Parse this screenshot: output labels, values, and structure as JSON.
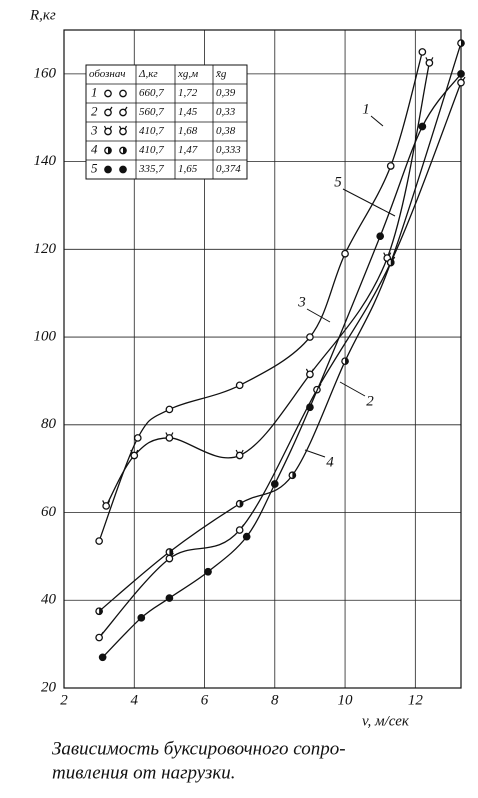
{
  "chart_data": {
    "type": "line",
    "ylabel": "R,кг",
    "xlabel": "v, м/сек",
    "caption": [
      "Зависимость буксировочного сопро-",
      "тивления от нагрузки."
    ],
    "xlim": [
      2,
      13.3
    ],
    "ylim": [
      20,
      170
    ],
    "xticks": [
      2,
      4,
      6,
      8,
      10,
      12
    ],
    "yticks": [
      20,
      40,
      60,
      80,
      100,
      120,
      140,
      160
    ],
    "grid": true,
    "series": [
      {
        "name": "1",
        "color": "#111",
        "marker": "open",
        "x": [
          3.0,
          4.1,
          5.0,
          7.0,
          9.0,
          10.0,
          11.3,
          12.2
        ],
        "values": [
          53.5,
          77,
          83.5,
          89,
          100,
          119,
          139,
          165
        ]
      },
      {
        "name": "2",
        "color": "#111",
        "marker": "open-tick",
        "x": [
          3.0,
          5.0,
          7.0,
          9.2,
          11.3,
          13.3
        ],
        "values": [
          31.5,
          49.5,
          56,
          88,
          117,
          158
        ]
      },
      {
        "name": "3",
        "color": "#111",
        "marker": "open-double-tick",
        "x": [
          3.2,
          4.0,
          5.0,
          7.0,
          9.0,
          11.2,
          12.4
        ],
        "values": [
          61.5,
          73,
          77,
          73,
          91.5,
          118,
          162.5
        ]
      },
      {
        "name": "4",
        "color": "#111",
        "marker": "half",
        "x": [
          3.0,
          5.0,
          7.0,
          8.5,
          10.0,
          11.3,
          13.3
        ],
        "values": [
          37.5,
          51,
          62,
          68.5,
          94.5,
          117,
          167
        ]
      },
      {
        "name": "5",
        "color": "#111",
        "marker": "filled",
        "x": [
          3.1,
          4.2,
          5.0,
          6.1,
          7.2,
          8.0,
          9.0,
          11.0,
          12.2,
          13.3
        ],
        "values": [
          27,
          36,
          40.5,
          46.5,
          54.5,
          66.5,
          84,
          123,
          148,
          160
        ]
      }
    ],
    "legend_table": {
      "header": [
        "обознач",
        "Δ,кг",
        "xg,м",
        "x̄g"
      ],
      "rows": [
        [
          "660,7",
          "1,72",
          "0,39"
        ],
        [
          "560,7",
          "1,45",
          "0,33"
        ],
        [
          "410,7",
          "1,68",
          "0,38"
        ],
        [
          "410,7",
          "1,47",
          "0,333"
        ],
        [
          "335,7",
          "1,65",
          "0,374"
        ]
      ]
    }
  }
}
